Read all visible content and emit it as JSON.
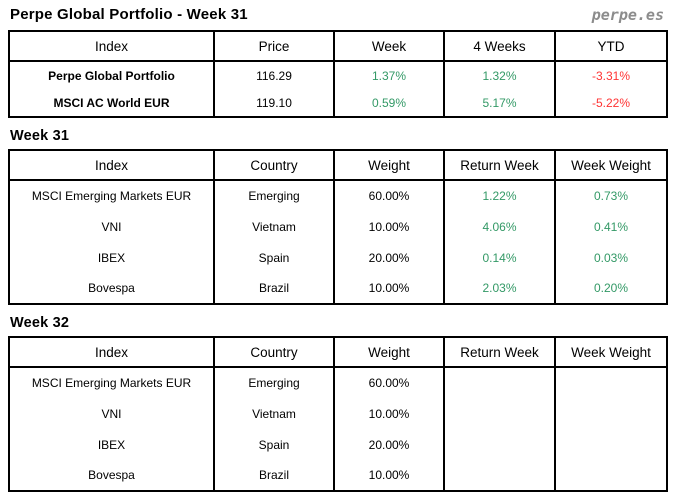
{
  "header": {
    "title": "Perpe Global Portfolio - Week 31",
    "logo": "perpe.es"
  },
  "colors": {
    "positive": "#339966",
    "negative": "#ff3333",
    "logo_gray": "#8c8c8c"
  },
  "summary_table": {
    "headers": [
      "Index",
      "Price",
      "Week",
      "4 Weeks",
      "YTD"
    ],
    "rows": [
      {
        "index": "Perpe Global Portfolio",
        "price": "116.29",
        "week": "1.37%",
        "four_weeks": "1.32%",
        "ytd": "-3.31%"
      },
      {
        "index": "MSCI AC World EUR",
        "price": "119.10",
        "week": "0.59%",
        "four_weeks": "5.17%",
        "ytd": "-5.22%"
      }
    ]
  },
  "week31": {
    "heading": "Week 31",
    "headers": [
      "Index",
      "Country",
      "Weight",
      "Return Week",
      "Week Weight"
    ],
    "rows": [
      {
        "index": "MSCI Emerging Markets EUR",
        "country": "Emerging",
        "weight": "60.00%",
        "return_week": "1.22%",
        "week_weight": "0.73%"
      },
      {
        "index": "VNI",
        "country": "Vietnam",
        "weight": "10.00%",
        "return_week": "4.06%",
        "week_weight": "0.41%"
      },
      {
        "index": "IBEX",
        "country": "Spain",
        "weight": "20.00%",
        "return_week": "0.14%",
        "week_weight": "0.03%"
      },
      {
        "index": "Bovespa",
        "country": "Brazil",
        "weight": "10.00%",
        "return_week": "2.03%",
        "week_weight": "0.20%"
      }
    ]
  },
  "week32": {
    "heading": "Week 32",
    "headers": [
      "Index",
      "Country",
      "Weight",
      "Return Week",
      "Week Weight"
    ],
    "rows": [
      {
        "index": "MSCI Emerging Markets EUR",
        "country": "Emerging",
        "weight": "60.00%",
        "return_week": "",
        "week_weight": ""
      },
      {
        "index": "VNI",
        "country": "Vietnam",
        "weight": "10.00%",
        "return_week": "",
        "week_weight": ""
      },
      {
        "index": "IBEX",
        "country": "Spain",
        "weight": "20.00%",
        "return_week": "",
        "week_weight": ""
      },
      {
        "index": "Bovespa",
        "country": "Brazil",
        "weight": "10.00%",
        "return_week": "",
        "week_weight": ""
      }
    ]
  }
}
